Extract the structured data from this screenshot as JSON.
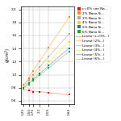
{
  "chart_data": {
    "type": "scatter",
    "y_label": "g/cm²)",
    "x": [
      1.25,
      1.55,
      1.75,
      2.1,
      2.55,
      3.65
    ],
    "xlim": [
      1.1,
      3.9
    ],
    "xticks": [
      1.25,
      1.55,
      1.75,
      2.1,
      2.55,
      3.65
    ],
    "ylim": [
      0.55,
      2.05
    ],
    "yticks": [
      0.6,
      0.8,
      1.0,
      1.2,
      1.4,
      1.6,
      1.8,
      2.0
    ],
    "grid": true,
    "legend": "upper left",
    "marker": "square",
    "series": [
      {
        "name": "c=0% con Na...",
        "color": "#e8000d",
        "values": [
          0.78,
          0.76,
          0.74,
          0.73,
          0.72,
          0.7
        ],
        "trend": {
          "name": "Linear (c=0%...)",
          "color": "#ffaaaa",
          "line_style": "solid",
          "x": [
            1.25,
            3.65
          ],
          "values": [
            0.7659,
            0.6917
          ]
        }
      },
      {
        "name": "2% Nano Si...",
        "color": "#ff8c00",
        "values": [
          0.85,
          0.95,
          1.05,
          1.2,
          1.42,
          1.88
        ],
        "trend": {
          "name": "Linear (2%...)",
          "color": "#ffcc88",
          "line_style": "solid",
          "x": [
            1.25,
            3.65
          ],
          "values": [
            0.8356,
            1.8837
          ]
        }
      },
      {
        "name": "3% Nano Si...",
        "color": "#aaaaaa",
        "values": [
          0.83,
          0.92,
          1.0,
          1.12,
          1.28,
          1.62
        ],
        "trend": {
          "name": "Linear (3%...)",
          "color": "#cccccc",
          "line_style": "solid",
          "x": [
            1.25,
            3.65
          ],
          "values": [
            0.8321,
            1.6295
          ]
        }
      },
      {
        "name": "4% Nano Si...",
        "color": "#ffd700",
        "values": [
          0.82,
          0.89,
          0.96,
          1.07,
          1.2,
          1.5
        ],
        "trend": {
          "name": "Linear (4%...)",
          "color": "#ffee88",
          "line_style": "solid",
          "x": [
            1.25,
            3.65
          ],
          "values": [
            0.8174,
            1.5063
          ]
        }
      },
      {
        "name": "5% Nano Si...",
        "color": "#1f77b4",
        "values": [
          0.8,
          0.87,
          0.93,
          1.02,
          1.14,
          1.4
        ],
        "trend": {
          "name": "Linear (5%...)",
          "color": "#aabbee",
          "line_style": "solid",
          "x": [
            1.25,
            3.65
          ],
          "values": [
            0.8021,
            1.4065
          ]
        }
      },
      {
        "name": "6% Nano Si...",
        "color": "#2ca02c",
        "values": [
          0.79,
          0.85,
          0.91,
          0.99,
          1.1,
          1.35
        ],
        "trend": {
          "name": "Linear (6%...)",
          "color": "#aaddaa",
          "line_style": "solid",
          "x": [
            1.25,
            3.65
          ],
          "values": [
            0.7885,
            1.3532
          ]
        }
      }
    ]
  }
}
